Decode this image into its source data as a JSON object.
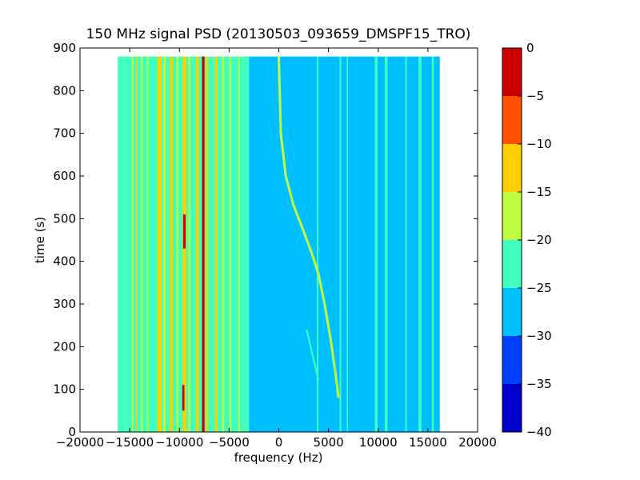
{
  "chart_data": {
    "type": "heatmap",
    "title": "150 MHz signal PSD (20130503_093659_DMSPF15_TRO)",
    "xlabel": "frequency (Hz)",
    "ylabel": "time (s)",
    "xlim": [
      -20000,
      20000
    ],
    "ylim": [
      0,
      900
    ],
    "xticks": [
      -20000,
      -15000,
      -10000,
      -5000,
      0,
      5000,
      10000,
      15000,
      20000
    ],
    "xtick_labels": [
      "−20000",
      "−15000",
      "−10000",
      "−5000",
      "0",
      "5000",
      "10000",
      "15000",
      "20000"
    ],
    "yticks": [
      0,
      100,
      200,
      300,
      400,
      500,
      600,
      700,
      800,
      900
    ],
    "ytick_labels": [
      "0",
      "100",
      "200",
      "300",
      "400",
      "500",
      "600",
      "700",
      "800",
      "900"
    ],
    "data_extent": {
      "x": [
        -16200,
        16200
      ],
      "y": [
        0,
        880
      ]
    },
    "colorbar": {
      "levels": [
        -40,
        -35,
        -30,
        -25,
        -20,
        -15,
        -10,
        -5,
        0
      ],
      "tick_labels": [
        "−40",
        "−35",
        "−30",
        "−25",
        "−20",
        "−15",
        "−10",
        "−5",
        "0"
      ],
      "colors": [
        "#0000cc",
        "#0040ff",
        "#00bfff",
        "#40ffbf",
        "#bfff40",
        "#ffd000",
        "#ff5000",
        "#cc0000"
      ]
    },
    "background_bands": [
      {
        "x0": -16200,
        "x1": -3000,
        "level": -22.5
      },
      {
        "x0": -3000,
        "x1": 5800,
        "level": -27.5
      },
      {
        "x0": 5800,
        "x1": 16200,
        "level": -27.5
      }
    ],
    "vertical_lines": [
      {
        "x": -14700,
        "width": 180,
        "level": -17.5
      },
      {
        "x": -14300,
        "width": 120,
        "level": -12.5
      },
      {
        "x": -13800,
        "width": 180,
        "level": -17.5
      },
      {
        "x": -13200,
        "width": 150,
        "level": -17.5
      },
      {
        "x": -12000,
        "width": 420,
        "level": -12.5
      },
      {
        "x": -11500,
        "width": 260,
        "level": -17.5
      },
      {
        "x": -10800,
        "width": 300,
        "level": -12.5
      },
      {
        "x": -10200,
        "width": 200,
        "level": -17.5
      },
      {
        "x": -9500,
        "width": 380,
        "level": -12.5
      },
      {
        "x": -9000,
        "width": 200,
        "level": -17.5
      },
      {
        "x": -8200,
        "width": 300,
        "level": -12.5
      },
      {
        "x": -7600,
        "width": 260,
        "level": -2.5
      },
      {
        "x": -7200,
        "width": 220,
        "level": -12.5
      },
      {
        "x": -6300,
        "width": 260,
        "level": -12.5
      },
      {
        "x": -5600,
        "width": 200,
        "level": -17.5
      },
      {
        "x": -4900,
        "width": 180,
        "level": -17.5
      },
      {
        "x": -4000,
        "width": 160,
        "level": -17.5
      },
      {
        "x": -3200,
        "width": 140,
        "level": -22.5
      },
      {
        "x": 3900,
        "width": 160,
        "level": -22.5
      },
      {
        "x": 6200,
        "width": 160,
        "level": -22.5
      },
      {
        "x": 6900,
        "width": 120,
        "level": -22.5
      },
      {
        "x": 9800,
        "width": 260,
        "level": -22.5
      },
      {
        "x": 10800,
        "width": 260,
        "level": -22.5
      },
      {
        "x": 12800,
        "width": 160,
        "level": -22.5
      },
      {
        "x": 14200,
        "width": 300,
        "level": -22.5
      },
      {
        "x": 15500,
        "width": 200,
        "level": -22.5
      }
    ],
    "short_features": [
      {
        "x": -9500,
        "y0": 430,
        "y1": 510,
        "width": 260,
        "level": -2.5
      },
      {
        "x": -9600,
        "y0": 50,
        "y1": 110,
        "width": 220,
        "level": -2.5
      },
      {
        "x": -7600,
        "y0": 0,
        "y1": 880,
        "width": 120,
        "level": -2.5
      }
    ],
    "doppler_trace": {
      "level": -17.5,
      "points": [
        [
          0,
          880
        ],
        [
          200,
          700
        ],
        [
          700,
          600
        ],
        [
          1500,
          530
        ],
        [
          2500,
          470
        ],
        [
          3300,
          420
        ],
        [
          4000,
          370
        ],
        [
          4600,
          300
        ],
        [
          5200,
          220
        ],
        [
          5800,
          120
        ],
        [
          6000,
          80
        ]
      ]
    },
    "secondary_trace": {
      "level": -22.5,
      "points": [
        [
          2800,
          240
        ],
        [
          3400,
          180
        ],
        [
          4000,
          120
        ]
      ]
    }
  }
}
